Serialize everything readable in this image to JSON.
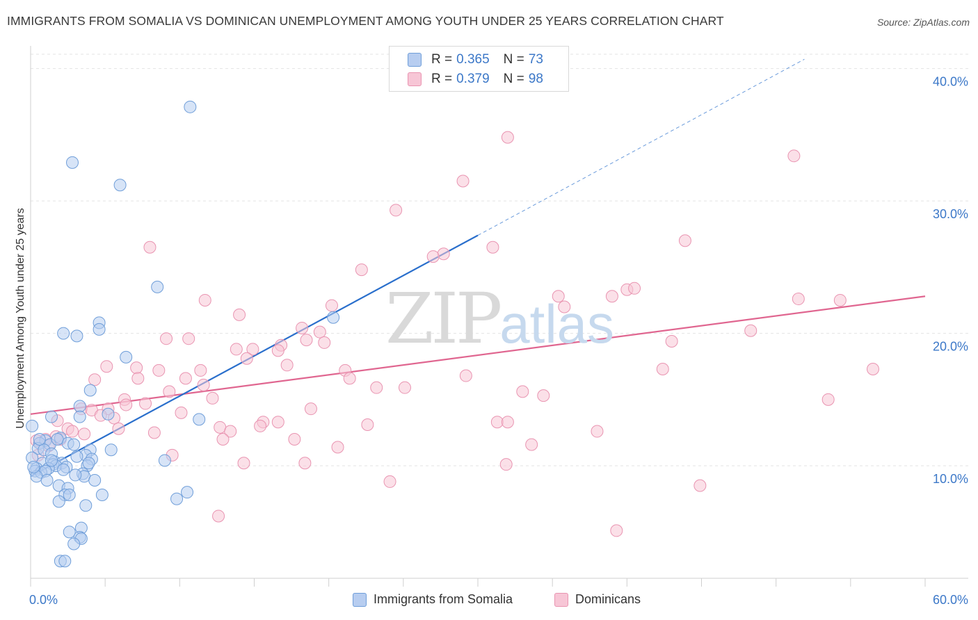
{
  "title": "IMMIGRANTS FROM SOMALIA VS DOMINICAN UNEMPLOYMENT AMONG YOUTH UNDER 25 YEARS CORRELATION CHART",
  "source": "Source: ZipAtlas.com",
  "watermark": {
    "zip": "ZIP",
    "atlas": "atlas"
  },
  "legend": {
    "r_label": "R =",
    "n_label": "N =",
    "series": [
      {
        "r": "0.365",
        "n": "73"
      },
      {
        "r": "0.379",
        "n": "98"
      }
    ]
  },
  "bottom_legend": [
    "Immigrants from Somalia",
    "Dominicans"
  ],
  "colors": {
    "somalia_fill": "#b7cdf0",
    "somalia_stroke": "#6f9ed9",
    "somalia_line": "#2a6fcc",
    "dominican_fill": "#f7c6d6",
    "dominican_stroke": "#e994b1",
    "dominican_line": "#e06690",
    "tick_text": "#3c78c8",
    "grid": "#e3e3e3"
  },
  "chart_data": {
    "type": "scatter",
    "title": "IMMIGRANTS FROM SOMALIA VS DOMINICAN UNEMPLOYMENT AMONG YOUTH UNDER 25 YEARS CORRELATION CHART",
    "xlabel": "",
    "ylabel": "Unemployment Among Youth under 25 years",
    "xlim": [
      0,
      60
    ],
    "ylim": [
      1.5,
      41.5
    ],
    "x_tick_labels": [
      "0.0%",
      "60.0%"
    ],
    "y_ticks": [
      10,
      20,
      30,
      40
    ],
    "y_tick_labels": [
      "10.0%",
      "20.0%",
      "30.0%",
      "40.0%"
    ],
    "series": [
      {
        "name": "Immigrants from Somalia",
        "r": 0.365,
        "n": 73,
        "trend": {
          "x": [
            0,
            30
          ],
          "y": [
            9.2,
            27.4
          ],
          "dashed_to": [
            51.9,
            40.7
          ]
        },
        "points": [
          [
            10.7,
            37.1
          ],
          [
            2.8,
            32.9
          ],
          [
            6.0,
            31.2
          ],
          [
            8.5,
            23.5
          ],
          [
            20.3,
            21.2
          ],
          [
            4.6,
            20.8
          ],
          [
            4.6,
            20.3
          ],
          [
            2.2,
            20.0
          ],
          [
            3.1,
            19.8
          ],
          [
            6.4,
            18.2
          ],
          [
            4.0,
            15.7
          ],
          [
            3.3,
            14.5
          ],
          [
            3.3,
            13.7
          ],
          [
            5.2,
            13.9
          ],
          [
            1.4,
            13.7
          ],
          [
            11.3,
            13.5
          ],
          [
            0.1,
            13.0
          ],
          [
            2.0,
            12.1
          ],
          [
            1.0,
            11.9
          ],
          [
            0.6,
            11.7
          ],
          [
            2.5,
            11.7
          ],
          [
            1.3,
            11.6
          ],
          [
            0.5,
            11.3
          ],
          [
            0.9,
            11.2
          ],
          [
            1.4,
            10.9
          ],
          [
            0.1,
            10.6
          ],
          [
            5.4,
            11.2
          ],
          [
            4.0,
            11.2
          ],
          [
            3.7,
            10.8
          ],
          [
            3.1,
            10.7
          ],
          [
            4.1,
            10.5
          ],
          [
            1.6,
            10.3
          ],
          [
            0.8,
            10.2
          ],
          [
            2.1,
            10.2
          ],
          [
            1.5,
            10.1
          ],
          [
            1.7,
            10.0
          ],
          [
            3.8,
            10.0
          ],
          [
            2.4,
            9.9
          ],
          [
            1.2,
            9.8
          ],
          [
            0.4,
            9.8
          ],
          [
            0.3,
            9.6
          ],
          [
            0.7,
            9.5
          ],
          [
            1.0,
            9.6
          ],
          [
            3.5,
            9.4
          ],
          [
            3.6,
            9.2
          ],
          [
            0.4,
            9.2
          ],
          [
            3.0,
            9.3
          ],
          [
            9.0,
            10.4
          ],
          [
            1.1,
            8.9
          ],
          [
            4.3,
            8.9
          ],
          [
            1.9,
            8.5
          ],
          [
            2.5,
            8.3
          ],
          [
            2.3,
            7.8
          ],
          [
            2.6,
            7.8
          ],
          [
            4.8,
            7.8
          ],
          [
            10.5,
            8.0
          ],
          [
            9.8,
            7.5
          ],
          [
            1.9,
            7.3
          ],
          [
            3.7,
            7.0
          ],
          [
            2.6,
            5.0
          ],
          [
            3.4,
            5.3
          ],
          [
            3.3,
            4.6
          ],
          [
            3.4,
            4.5
          ],
          [
            2.9,
            4.1
          ],
          [
            2.0,
            2.8
          ],
          [
            2.3,
            2.8
          ],
          [
            1.4,
            10.4
          ],
          [
            0.2,
            9.9
          ],
          [
            2.9,
            11.6
          ],
          [
            1.8,
            12.0
          ],
          [
            0.6,
            12.0
          ],
          [
            3.9,
            10.2
          ],
          [
            2.2,
            9.7
          ]
        ]
      },
      {
        "name": "Dominicans",
        "r": 0.379,
        "n": 98,
        "trend": {
          "x": [
            0,
            60
          ],
          "y": [
            13.9,
            22.8
          ]
        },
        "points": [
          [
            32.0,
            34.8
          ],
          [
            51.2,
            33.4
          ],
          [
            29.0,
            31.5
          ],
          [
            24.5,
            29.3
          ],
          [
            43.9,
            27.0
          ],
          [
            8.0,
            26.5
          ],
          [
            31.0,
            26.5
          ],
          [
            27.7,
            26.0
          ],
          [
            27.0,
            25.8
          ],
          [
            22.2,
            24.8
          ],
          [
            40.0,
            23.3
          ],
          [
            40.5,
            23.4
          ],
          [
            35.4,
            22.8
          ],
          [
            39.0,
            22.8
          ],
          [
            51.5,
            22.6
          ],
          [
            54.3,
            22.5
          ],
          [
            11.7,
            22.5
          ],
          [
            20.2,
            22.1
          ],
          [
            35.8,
            22.0
          ],
          [
            14.0,
            21.4
          ],
          [
            18.2,
            20.4
          ],
          [
            19.4,
            20.1
          ],
          [
            48.3,
            20.2
          ],
          [
            9.1,
            19.6
          ],
          [
            10.6,
            19.6
          ],
          [
            18.5,
            19.5
          ],
          [
            19.7,
            19.3
          ],
          [
            16.8,
            19.1
          ],
          [
            14.9,
            18.8
          ],
          [
            13.8,
            18.8
          ],
          [
            16.6,
            18.7
          ],
          [
            43.0,
            19.4
          ],
          [
            14.5,
            18.1
          ],
          [
            5.1,
            17.5
          ],
          [
            7.1,
            17.4
          ],
          [
            17.2,
            17.6
          ],
          [
            42.4,
            17.3
          ],
          [
            56.5,
            17.3
          ],
          [
            8.6,
            17.2
          ],
          [
            11.4,
            17.2
          ],
          [
            21.1,
            17.2
          ],
          [
            29.2,
            16.8
          ],
          [
            10.4,
            16.6
          ],
          [
            21.4,
            16.6
          ],
          [
            7.2,
            16.6
          ],
          [
            4.3,
            16.5
          ],
          [
            11.6,
            16.1
          ],
          [
            23.2,
            15.9
          ],
          [
            25.1,
            15.9
          ],
          [
            34.4,
            15.3
          ],
          [
            33.0,
            15.6
          ],
          [
            9.3,
            15.6
          ],
          [
            12.2,
            15.1
          ],
          [
            6.3,
            15.0
          ],
          [
            7.7,
            14.7
          ],
          [
            6.4,
            14.6
          ],
          [
            5.2,
            14.3
          ],
          [
            3.4,
            14.3
          ],
          [
            18.8,
            14.3
          ],
          [
            53.5,
            15.0
          ],
          [
            4.1,
            14.2
          ],
          [
            10.1,
            14.0
          ],
          [
            4.7,
            13.8
          ],
          [
            5.6,
            13.6
          ],
          [
            1.8,
            13.4
          ],
          [
            31.3,
            13.3
          ],
          [
            32.0,
            13.3
          ],
          [
            15.6,
            13.3
          ],
          [
            16.6,
            13.3
          ],
          [
            15.4,
            13.0
          ],
          [
            22.6,
            13.1
          ],
          [
            3.6,
            12.4
          ],
          [
            2.5,
            12.8
          ],
          [
            5.9,
            12.8
          ],
          [
            12.7,
            12.9
          ],
          [
            13.4,
            12.6
          ],
          [
            8.3,
            12.5
          ],
          [
            38.0,
            12.6
          ],
          [
            2.0,
            12.0
          ],
          [
            1.7,
            12.2
          ],
          [
            1.0,
            12.0
          ],
          [
            0.4,
            11.9
          ],
          [
            0.6,
            11.7
          ],
          [
            12.9,
            12.0
          ],
          [
            17.7,
            12.0
          ],
          [
            33.6,
            11.6
          ],
          [
            20.6,
            11.4
          ],
          [
            9.5,
            10.8
          ],
          [
            0.5,
            10.8
          ],
          [
            14.3,
            10.2
          ],
          [
            18.4,
            10.2
          ],
          [
            31.9,
            10.1
          ],
          [
            24.1,
            8.8
          ],
          [
            44.9,
            8.5
          ],
          [
            12.6,
            6.2
          ],
          [
            39.3,
            5.1
          ],
          [
            2.8,
            12.6
          ],
          [
            1.2,
            11.5
          ]
        ]
      }
    ]
  }
}
